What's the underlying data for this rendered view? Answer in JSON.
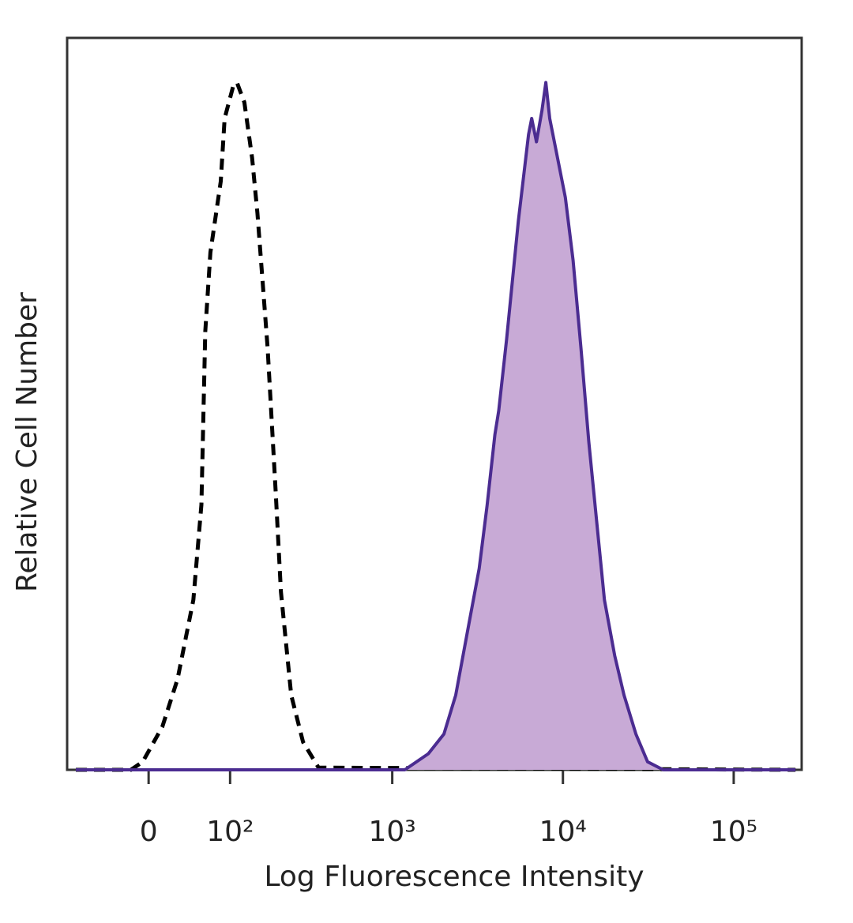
{
  "chart_data": {
    "type": "histogram-overlay",
    "x_label": "Log Fluorescence Intensity",
    "y_label": "Relative Cell Number",
    "xscale": "biexponential",
    "xlim": [
      -100,
      250000
    ],
    "xticks": [
      0,
      {
        "value": 100,
        "label": "10²"
      },
      {
        "value": 1000,
        "label": "10³"
      },
      {
        "value": 10000,
        "label": "10⁴"
      },
      {
        "value": 100000,
        "label": "10⁵"
      }
    ],
    "ylim": [
      0,
      100
    ],
    "series": [
      {
        "color": "#000000",
        "dashed": true,
        "filled": false,
        "x": [
          -86,
          -18,
          -6,
          14,
          30,
          48,
          58,
          63,
          70,
          85,
          91,
          105,
          112,
          126,
          142,
          154,
          179,
          201,
          217,
          251,
          296,
          367,
          230000
        ],
        "values": [
          0,
          0,
          1.1,
          5.9,
          12.4,
          23.2,
          36.2,
          59.9,
          70.7,
          80.4,
          89.0,
          93.3,
          93.9,
          91.2,
          83.6,
          76.1,
          57.7,
          38.3,
          24.3,
          10.2,
          3.8,
          0.3,
          0
        ]
      },
      {
        "color": "#4b2c91",
        "dashed": false,
        "filled": true,
        "fill_color": "#c8aad6",
        "x": [
          -86,
          1185,
          1627,
          2010,
          2355,
          2760,
          3233,
          3596,
          3998,
          4211,
          4680,
          5483,
          6293,
          6563,
          6998,
          7538,
          7946,
          8370,
          9296,
          10335,
          11475,
          12750,
          14175,
          15750,
          17513,
          20100,
          22800,
          26738,
          31313,
          38700,
          230000
        ],
        "values": [
          0,
          0,
          2.2,
          4.9,
          10.2,
          18.9,
          27.5,
          36.1,
          45.8,
          49.1,
          58.8,
          75.0,
          86.8,
          89.0,
          85.8,
          90.1,
          93.9,
          89.0,
          83.6,
          78.2,
          69.6,
          57.7,
          44.8,
          34.0,
          23.2,
          15.6,
          10.2,
          4.9,
          1.1,
          0,
          0
        ]
      }
    ]
  }
}
